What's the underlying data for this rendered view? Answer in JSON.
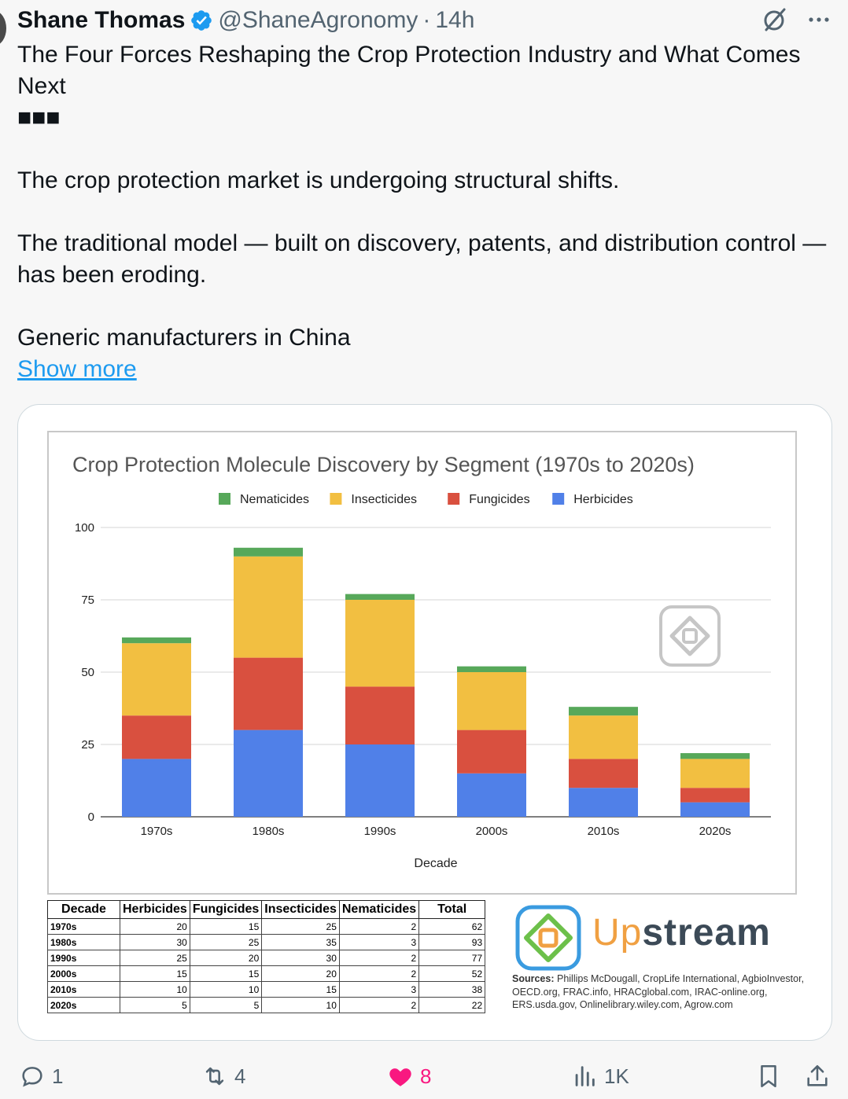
{
  "tweet": {
    "author_name": "Shane Thomas",
    "handle": "@ShaneAgronomy",
    "separator": "·",
    "time": "14h",
    "text": "The Four Forces Reshaping the Crop Protection Industry and What Comes Next\n■■■\n\nThe crop protection market is undergoing structural shifts.\n\nThe traditional model — built on discovery, patents, and distribution control — has been eroding.\n\nGeneric manufacturers in China",
    "show_more": "Show more"
  },
  "chart_data": {
    "type": "bar",
    "stacked": true,
    "title": "Crop Protection Molecule Discovery by Segment (1970s to 2020s)",
    "xlabel": "Decade",
    "ylabel": "",
    "ylim": [
      0,
      100
    ],
    "yticks": [
      0,
      25,
      50,
      75,
      100
    ],
    "grid": true,
    "legend_position": "top",
    "categories": [
      "1970s",
      "1980s",
      "1990s",
      "2000s",
      "2010s",
      "2020s"
    ],
    "series": [
      {
        "name": "Herbicides",
        "color": "#5080e8",
        "values": [
          20,
          30,
          25,
          15,
          10,
          5
        ]
      },
      {
        "name": "Fungicides",
        "color": "#d9503f",
        "values": [
          15,
          25,
          20,
          15,
          10,
          5
        ]
      },
      {
        "name": "Insecticides",
        "color": "#f2bf41",
        "values": [
          25,
          35,
          30,
          20,
          15,
          10
        ]
      },
      {
        "name": "Nematicides",
        "color": "#57a85a",
        "values": [
          2,
          3,
          2,
          2,
          3,
          2
        ]
      }
    ],
    "legend_order": [
      "Nematicides",
      "Insecticides",
      "Fungicides",
      "Herbicides"
    ]
  },
  "table": {
    "headers": [
      "Decade",
      "Herbicides",
      "Fungicides",
      "Insecticides",
      "Nematicides",
      "Total"
    ],
    "rows": [
      [
        "1970s",
        "20",
        "15",
        "25",
        "2",
        "62"
      ],
      [
        "1980s",
        "30",
        "25",
        "35",
        "3",
        "93"
      ],
      [
        "1990s",
        "25",
        "20",
        "30",
        "2",
        "77"
      ],
      [
        "2000s",
        "15",
        "15",
        "20",
        "2",
        "52"
      ],
      [
        "2010s",
        "10",
        "10",
        "15",
        "3",
        "38"
      ],
      [
        "2020s",
        "5",
        "5",
        "10",
        "2",
        "22"
      ]
    ]
  },
  "branding": {
    "up": "Up",
    "stream": "stream",
    "sources_label": "Sources:",
    "sources_text": "Phillips McDougall, CropLife International, AgbioInvestor, OECD.org, FRAC.info, HRACglobal.com, IRAC-online.org, ERS.usda.gov, Onlinelibrary.wiley.com, Agrow.com"
  },
  "actions": {
    "replies": "1",
    "reposts": "4",
    "likes": "8",
    "views": "1K"
  },
  "colors": {
    "link": "#1d9bf0",
    "like": "#f91880",
    "verified": "#1d9bf0",
    "muted": "#536471"
  }
}
